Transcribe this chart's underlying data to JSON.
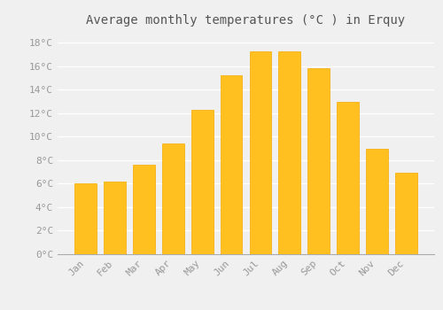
{
  "title": "Average monthly temperatures (°C ) in Erquy",
  "months": [
    "Jan",
    "Feb",
    "Mar",
    "Apr",
    "May",
    "Jun",
    "Jul",
    "Aug",
    "Sep",
    "Oct",
    "Nov",
    "Dec"
  ],
  "values": [
    6.0,
    6.2,
    7.6,
    9.4,
    12.3,
    15.2,
    17.3,
    17.3,
    15.8,
    13.0,
    9.0,
    6.9
  ],
  "bar_color": "#FFC020",
  "bar_edge_color": "#F5A800",
  "background_color": "#F0F0F0",
  "grid_color": "#FFFFFF",
  "tick_label_color": "#999999",
  "title_color": "#555555",
  "ylim": [
    0,
    19
  ],
  "yticks": [
    0,
    2,
    4,
    6,
    8,
    10,
    12,
    14,
    16,
    18
  ],
  "ytick_labels": [
    "0°C",
    "2°C",
    "4°C",
    "6°C",
    "8°C",
    "10°C",
    "12°C",
    "14°C",
    "16°C",
    "18°C"
  ],
  "title_fontsize": 10,
  "tick_fontsize": 8,
  "font_family": "monospace",
  "bar_width": 0.75
}
